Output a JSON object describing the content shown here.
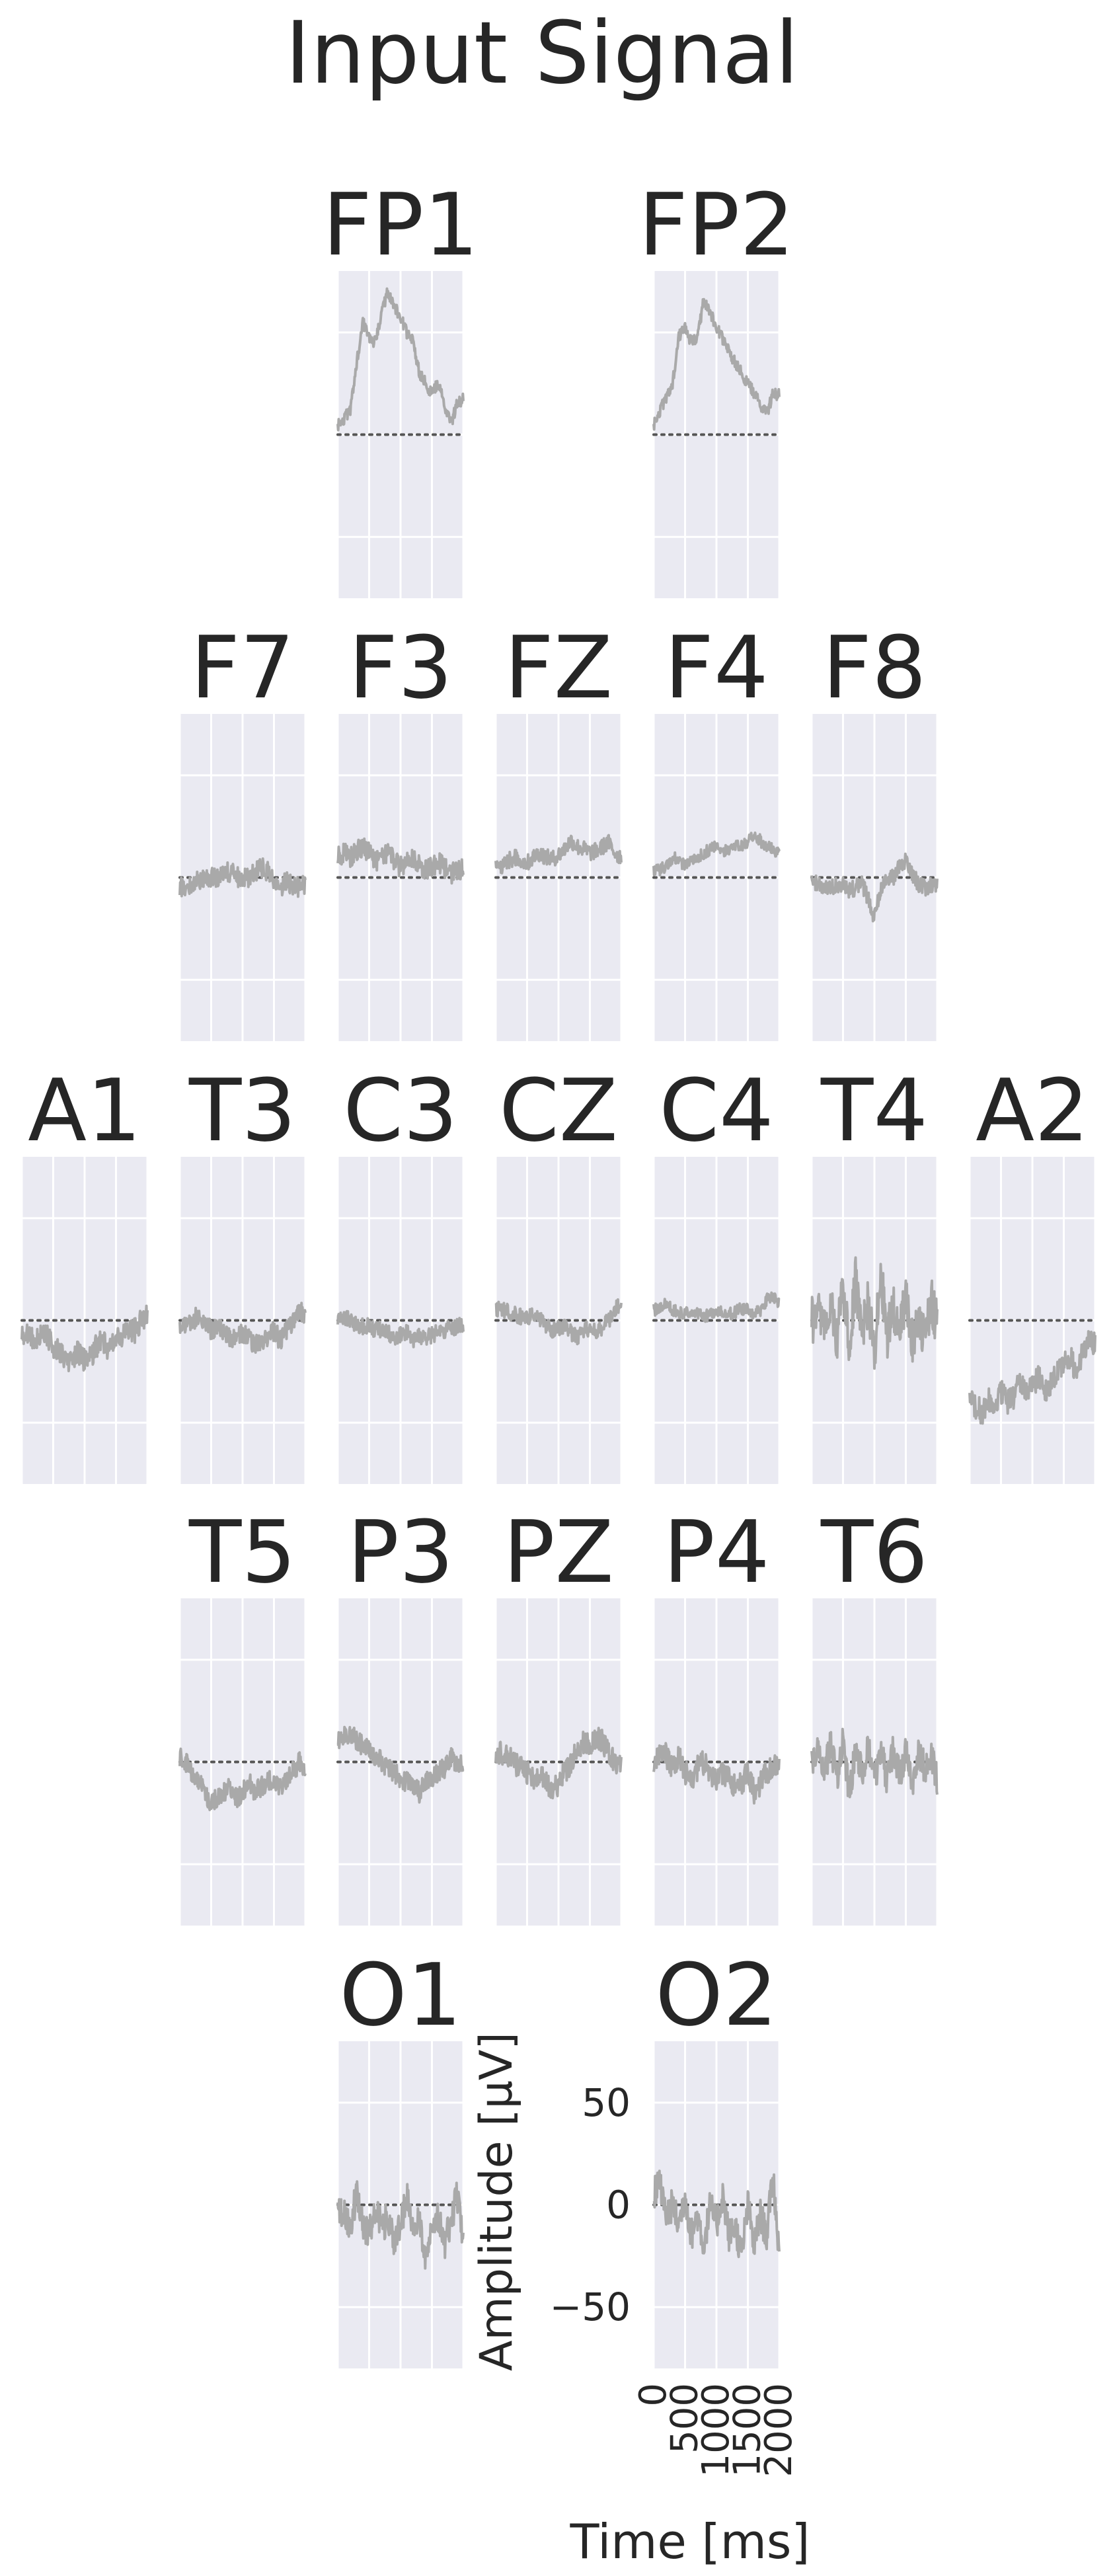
{
  "figure": {
    "title": "Input Signal",
    "background_color": "#ffffff",
    "panel_color": "#eaeaf2",
    "grid_color": "#ffffff",
    "trace_color": "#a9a9a9",
    "baseline_color": "#555555",
    "text_color": "#262626"
  },
  "chart_data": {
    "type": "line",
    "title": "Input Signal",
    "xlabel": "Time [ms]",
    "ylabel": "Amplitude [µV]",
    "xlim": [
      0,
      2000
    ],
    "ylim": [
      -80,
      80
    ],
    "xticks": [
      0,
      500,
      1000,
      1500,
      2000
    ],
    "xtick_labels": [
      "0",
      "500",
      "1000",
      "1500",
      "2000"
    ],
    "yticks": [
      50,
      0,
      -50
    ],
    "ytick_labels": [
      "50",
      "0",
      "−50"
    ],
    "grid": true,
    "baseline": 0,
    "labeled_axes_channel": "O2",
    "x": [
      0,
      100,
      200,
      300,
      400,
      500,
      600,
      700,
      800,
      900,
      1000,
      1100,
      1200,
      1300,
      1400,
      1500,
      1600,
      1700,
      1800,
      1900,
      2000
    ],
    "layout_rows": [
      [
        null,
        null,
        "FP1",
        null,
        "FP2",
        null,
        null
      ],
      [
        null,
        "F7",
        "F3",
        "FZ",
        "F4",
        "F8",
        null
      ],
      [
        "A1",
        "T3",
        "C3",
        "CZ",
        "C4",
        "T4",
        "A2"
      ],
      [
        null,
        "T5",
        "P3",
        "PZ",
        "P4",
        "T6",
        null
      ],
      [
        null,
        null,
        "O1",
        null,
        "O2",
        null,
        null
      ]
    ],
    "series": [
      {
        "name": "FP1",
        "values": [
          5,
          8,
          12,
          35,
          55,
          48,
          45,
          60,
          70,
          63,
          58,
          50,
          45,
          30,
          25,
          20,
          25,
          15,
          5,
          15,
          18
        ],
        "noise": 3
      },
      {
        "name": "FP2",
        "values": [
          5,
          12,
          18,
          25,
          48,
          53,
          45,
          48,
          66,
          60,
          53,
          47,
          40,
          35,
          30,
          25,
          20,
          15,
          10,
          20,
          20
        ],
        "noise": 3
      },
      {
        "name": "F7",
        "values": [
          -5,
          -4,
          -3,
          -2,
          -1,
          0,
          0,
          2,
          3,
          1,
          -1,
          0,
          2,
          5,
          3,
          -3,
          -5,
          -2,
          -4,
          -5,
          -3
        ],
        "noise": 5
      },
      {
        "name": "F3",
        "values": [
          10,
          12,
          10,
          13,
          15,
          12,
          8,
          10,
          12,
          8,
          5,
          8,
          10,
          6,
          4,
          5,
          8,
          5,
          2,
          3,
          5
        ],
        "noise": 5
      },
      {
        "name": "FZ",
        "values": [
          5,
          6,
          8,
          10,
          8,
          7,
          10,
          12,
          10,
          9,
          11,
          14,
          18,
          15,
          14,
          12,
          13,
          15,
          17,
          12,
          10
        ],
        "noise": 4
      },
      {
        "name": "F4",
        "values": [
          3,
          4,
          5,
          10,
          8,
          6,
          8,
          10,
          12,
          14,
          15,
          13,
          14,
          16,
          15,
          18,
          20,
          18,
          15,
          14,
          12
        ],
        "noise": 3
      },
      {
        "name": "F8",
        "values": [
          -2,
          -3,
          -4,
          -5,
          -3,
          -4,
          -6,
          -5,
          -3,
          -10,
          -20,
          -5,
          -2,
          0,
          5,
          8,
          2,
          -3,
          -5,
          -4,
          -3
        ],
        "noise": 4
      },
      {
        "name": "A1",
        "values": [
          -5,
          -8,
          -10,
          -6,
          -8,
          -12,
          -15,
          -20,
          -18,
          -15,
          -20,
          -18,
          -12,
          -10,
          -15,
          -10,
          -8,
          -5,
          -5,
          0,
          2
        ],
        "noise": 6
      },
      {
        "name": "T3",
        "values": [
          -2,
          -3,
          0,
          2,
          -2,
          -5,
          -3,
          -5,
          -8,
          -10,
          -6,
          -8,
          -12,
          -10,
          -8,
          -5,
          -10,
          -5,
          -2,
          5,
          3
        ],
        "noise": 5
      },
      {
        "name": "C3",
        "values": [
          0,
          1,
          0,
          -2,
          -3,
          -2,
          -5,
          -4,
          -6,
          -8,
          -7,
          -6,
          -10,
          -8,
          -9,
          -7,
          -6,
          -5,
          -4,
          -3,
          -2
        ],
        "noise": 4
      },
      {
        "name": "CZ",
        "values": [
          5,
          6,
          4,
          3,
          2,
          1,
          3,
          0,
          -2,
          -5,
          -4,
          -3,
          -6,
          -8,
          -5,
          -4,
          -6,
          -3,
          0,
          5,
          8
        ],
        "noise": 4
      },
      {
        "name": "C4",
        "values": [
          5,
          6,
          8,
          5,
          4,
          3,
          5,
          4,
          2,
          3,
          4,
          5,
          3,
          4,
          6,
          5,
          3,
          5,
          10,
          12,
          8
        ],
        "noise": 3
      },
      {
        "name": "T4",
        "values": [
          0,
          5,
          -5,
          10,
          -10,
          15,
          -12,
          20,
          -8,
          10,
          -15,
          25,
          -10,
          8,
          -6,
          12,
          -10,
          5,
          -8,
          10,
          -2
        ],
        "noise": 12
      },
      {
        "name": "A2",
        "values": [
          -40,
          -42,
          -45,
          -38,
          -42,
          -35,
          -40,
          -38,
          -30,
          -35,
          -32,
          -28,
          -35,
          -30,
          -25,
          -20,
          -18,
          -25,
          -15,
          -10,
          -12
        ],
        "noise": 6
      },
      {
        "name": "T5",
        "values": [
          2,
          0,
          -5,
          -10,
          -15,
          -20,
          -18,
          -15,
          -12,
          -18,
          -15,
          -10,
          -15,
          -12,
          -10,
          -8,
          -12,
          -10,
          -5,
          0,
          -5
        ],
        "noise": 5
      },
      {
        "name": "P3",
        "values": [
          10,
          12,
          15,
          10,
          8,
          5,
          3,
          0,
          -3,
          -5,
          -8,
          -10,
          -12,
          -15,
          -10,
          -8,
          -5,
          -3,
          2,
          0,
          -3
        ],
        "noise": 5
      },
      {
        "name": "PZ",
        "values": [
          5,
          4,
          3,
          0,
          -3,
          -5,
          -8,
          -5,
          -10,
          -15,
          -10,
          -5,
          0,
          5,
          10,
          8,
          12,
          10,
          5,
          0,
          -2
        ],
        "noise": 6
      },
      {
        "name": "P4",
        "values": [
          0,
          5,
          3,
          -2,
          2,
          -5,
          -8,
          -3,
          0,
          -6,
          -10,
          -5,
          -8,
          -12,
          -10,
          -5,
          -15,
          -10,
          -5,
          -2,
          0
        ],
        "noise": 6
      },
      {
        "name": "T6",
        "values": [
          0,
          5,
          -5,
          8,
          -8,
          10,
          -15,
          5,
          -5,
          8,
          -10,
          5,
          -8,
          6,
          -6,
          4,
          -10,
          5,
          -3,
          2,
          -8
        ],
        "noise": 8
      },
      {
        "name": "O1",
        "values": [
          0,
          -5,
          -10,
          5,
          -8,
          -15,
          0,
          -12,
          -5,
          -20,
          -10,
          5,
          -15,
          -8,
          -25,
          -10,
          -5,
          -20,
          -8,
          5,
          -15
        ],
        "noise": 8
      },
      {
        "name": "O2",
        "values": [
          5,
          10,
          -5,
          0,
          -10,
          5,
          -15,
          -5,
          -20,
          0,
          -10,
          5,
          -15,
          -10,
          -25,
          0,
          -20,
          -5,
          -15,
          15,
          -25
        ],
        "noise": 8
      }
    ]
  }
}
